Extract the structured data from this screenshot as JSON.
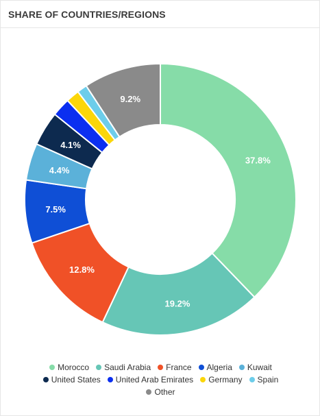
{
  "header": {
    "title": "SHARE OF COUNTRIES/REGIONS"
  },
  "chart_data": {
    "type": "pie",
    "donut": true,
    "title": "SHARE OF COUNTRIES/REGIONS",
    "legend_position": "bottom",
    "categories": [
      "Morocco",
      "Saudi Arabia",
      "France",
      "Algeria",
      "Kuwait",
      "United States",
      "United Arab Emirates",
      "Germany",
      "Spain",
      "Other"
    ],
    "values": [
      37.8,
      19.2,
      12.8,
      7.5,
      4.4,
      4.1,
      2.2,
      1.6,
      1.2,
      9.2
    ],
    "labels": [
      "37.8%",
      "19.2%",
      "12.8%",
      "7.5%",
      "4.4%",
      "4.1%",
      "",
      "",
      "",
      "9.2%"
    ],
    "colors": [
      "#86dca8",
      "#66c6b6",
      "#f05127",
      "#0f4fd6",
      "#5bb1d9",
      "#0d2a4f",
      "#0b2ff0",
      "#fbd609",
      "#6dcdea",
      "#8a8a8a"
    ]
  },
  "legend": {
    "rows": [
      [
        0,
        1,
        2,
        3,
        4
      ],
      [
        5,
        6,
        7,
        8
      ],
      [
        9
      ]
    ]
  }
}
